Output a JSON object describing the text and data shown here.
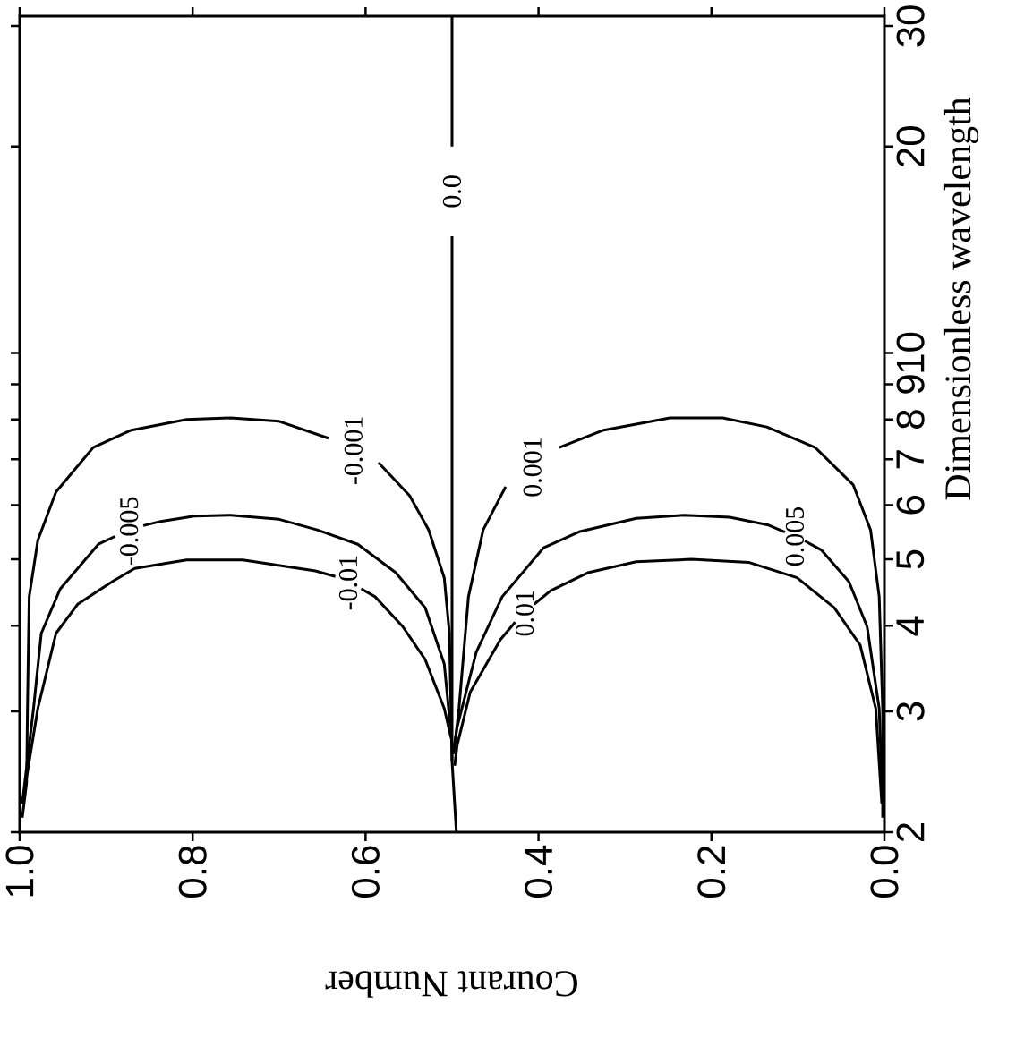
{
  "chart_data": {
    "type": "line",
    "xlabel": "Courant Number",
    "ylabel": "Dimensionless wavelength",
    "xlim": [
      1.0,
      0.0
    ],
    "ylim": [
      2,
      31
    ],
    "log": "y",
    "marker": "none",
    "line_style": "solid",
    "xticks": [
      {
        "value": 1.0,
        "label": "1.0"
      },
      {
        "value": 0.8,
        "label": "0.8"
      },
      {
        "value": 0.6,
        "label": "0.6"
      },
      {
        "value": 0.4,
        "label": "0.4"
      },
      {
        "value": 0.2,
        "label": "0.2"
      },
      {
        "value": 0.0,
        "label": "0.0"
      }
    ],
    "yticks": [
      2,
      3,
      4,
      5,
      6,
      7,
      8,
      9,
      10,
      20,
      30
    ],
    "series": [
      {
        "name": "-0.01",
        "color": "#000000",
        "x": [
          0.997,
          0.979,
          0.958,
          0.933,
          0.893,
          0.867,
          0.807,
          0.742,
          0.658,
          0.635,
          null,
          0.605,
          0.589,
          0.557,
          0.531,
          0.509,
          0.501
        ],
        "values": [
          2.2,
          3.03,
          3.9,
          4.3,
          4.64,
          4.85,
          4.99,
          4.99,
          4.81,
          4.72,
          null,
          4.53,
          4.41,
          3.99,
          3.57,
          3.03,
          2.74
        ]
      },
      {
        "name": "-0.005",
        "color": "#000000",
        "x": [
          0.997,
          0.984,
          0.975,
          0.953,
          0.909,
          0.89,
          null,
          0.857,
          0.837,
          0.798,
          0.756,
          0.7,
          0.656,
          0.609,
          0.565,
          0.531,
          0.509,
          0.502
        ],
        "values": [
          2.2,
          3.03,
          3.9,
          4.53,
          5.26,
          5.4,
          null,
          5.6,
          5.68,
          5.78,
          5.8,
          5.72,
          5.52,
          5.26,
          4.78,
          4.25,
          3.52,
          2.85
        ]
      },
      {
        "name": "-0.001",
        "color": "#000000",
        "x": [
          0.997,
          0.992,
          0.991,
          0.989,
          0.979,
          0.958,
          0.915,
          0.872,
          0.807,
          0.756,
          0.7,
          0.643,
          null,
          0.585,
          0.549,
          0.527,
          0.509,
          0.503,
          0.5
        ],
        "values": [
          2.1,
          2.36,
          3.03,
          4.41,
          5.33,
          6.27,
          7.28,
          7.71,
          8.0,
          8.04,
          7.95,
          7.51,
          null,
          6.92,
          6.19,
          5.52,
          4.7,
          3.9,
          2.54
        ]
      },
      {
        "name": "0.0",
        "color": "#000000",
        "x": [
          0.495,
          0.5,
          0.5,
          null,
          0.5,
          0.5
        ],
        "values": [
          2.0,
          2.54,
          14.8,
          null,
          20,
          31
        ]
      },
      {
        "name": "0.001",
        "color": "#000000",
        "x": [
          0.498,
          0.492,
          0.481,
          0.464,
          0.438,
          null,
          0.376,
          0.326,
          0.248,
          0.187,
          0.136,
          0.08,
          0.036,
          0.016,
          0.006,
          0.002,
          0.002
        ],
        "values": [
          2.6,
          3.03,
          4.41,
          5.52,
          6.38,
          null,
          7.28,
          7.71,
          8.04,
          8.04,
          7.8,
          7.28,
          6.42,
          5.52,
          4.41,
          3.03,
          2.1
        ]
      },
      {
        "name": "0.005",
        "color": "#000000",
        "x": [
          0.499,
          0.494,
          0.472,
          0.442,
          0.394,
          0.352,
          0.287,
          0.231,
          0.179,
          0.134,
          0.115,
          null,
          0.092,
          0.073,
          0.041,
          0.02,
          0.006,
          0.002
        ],
        "values": [
          2.6,
          2.85,
          3.66,
          4.41,
          5.2,
          5.49,
          5.74,
          5.8,
          5.76,
          5.61,
          5.48,
          null,
          5.32,
          5.16,
          4.64,
          3.99,
          3.03,
          2.2
        ]
      },
      {
        "name": "0.01",
        "color": "#000000",
        "x": [
          0.497,
          0.494,
          0.479,
          0.444,
          0.427,
          null,
          0.405,
          0.386,
          0.343,
          0.287,
          0.223,
          0.157,
          0.101,
          0.058,
          0.028,
          0.01,
          0.003
        ],
        "values": [
          2.5,
          2.68,
          3.2,
          3.82,
          4.05,
          null,
          4.3,
          4.5,
          4.78,
          4.96,
          5.0,
          4.95,
          4.7,
          4.25,
          3.75,
          3.03,
          2.2
        ]
      }
    ]
  }
}
